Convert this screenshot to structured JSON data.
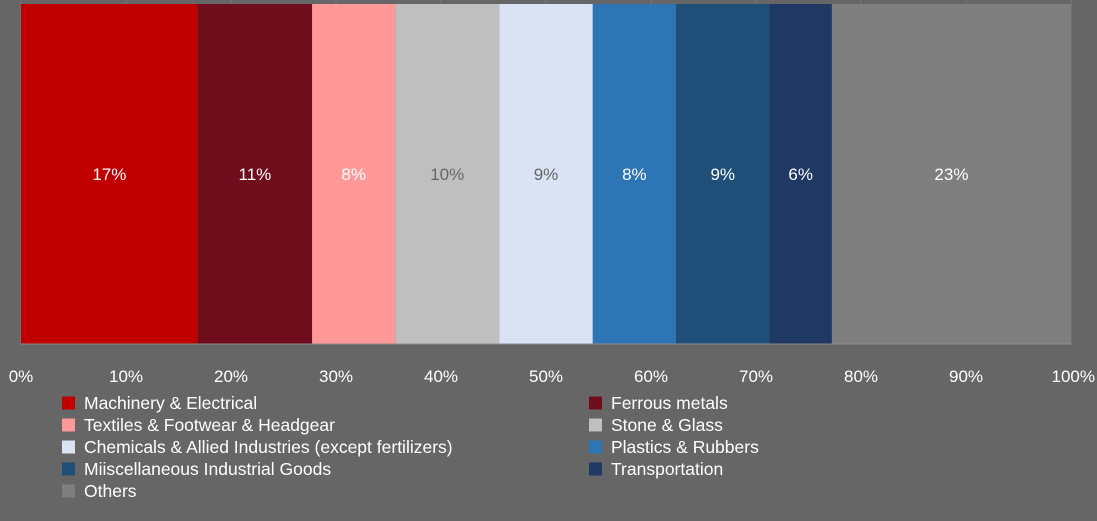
{
  "chart_data": {
    "type": "bar",
    "orientation": "horizontal-stacked-100",
    "title": "",
    "xlabel": "",
    "ylabel": "",
    "xlim": [
      0,
      100
    ],
    "x_ticks": [
      "0%",
      "10%",
      "20%",
      "30%",
      "40%",
      "50%",
      "60%",
      "70%",
      "80%",
      "90%",
      "100%"
    ],
    "grid": true,
    "legend_position": "bottom",
    "series": [
      {
        "name": "Machinery & Electrical",
        "value": 17,
        "label": "17%",
        "color": "#c00000",
        "label_color": "#ffffff"
      },
      {
        "name": "Ferrous metals",
        "value": 11,
        "label": "11%",
        "color": "#700d1d",
        "label_color": "#ffffff"
      },
      {
        "name": "Textiles & Footwear & Headgear",
        "value": 8,
        "label": "8%",
        "color": "#ff9999",
        "label_color": "#ffffff"
      },
      {
        "name": "Stone & Glass",
        "value": 10,
        "label": "10%",
        "color": "#bfbfbf",
        "label_color": "#666666"
      },
      {
        "name": "Chemicals & Allied Industries (except fertilizers)",
        "value": 9,
        "label": "9%",
        "color": "#dae3f3",
        "label_color": "#666666"
      },
      {
        "name": "Plastics & Rubbers",
        "value": 8,
        "label": "8%",
        "color": "#2e75b6",
        "label_color": "#ffffff"
      },
      {
        "name": "Miiscellaneous Industrial Goods",
        "value": 9,
        "label": "9%",
        "color": "#1f4e79",
        "label_color": "#ffffff"
      },
      {
        "name": "Transportation",
        "value": 6,
        "label": "6%",
        "color": "#203864",
        "label_color": "#ffffff"
      },
      {
        "name": "Others",
        "value": 23,
        "label": "23%",
        "color": "#7f7f7f",
        "label_color": "#ffffff"
      }
    ]
  }
}
